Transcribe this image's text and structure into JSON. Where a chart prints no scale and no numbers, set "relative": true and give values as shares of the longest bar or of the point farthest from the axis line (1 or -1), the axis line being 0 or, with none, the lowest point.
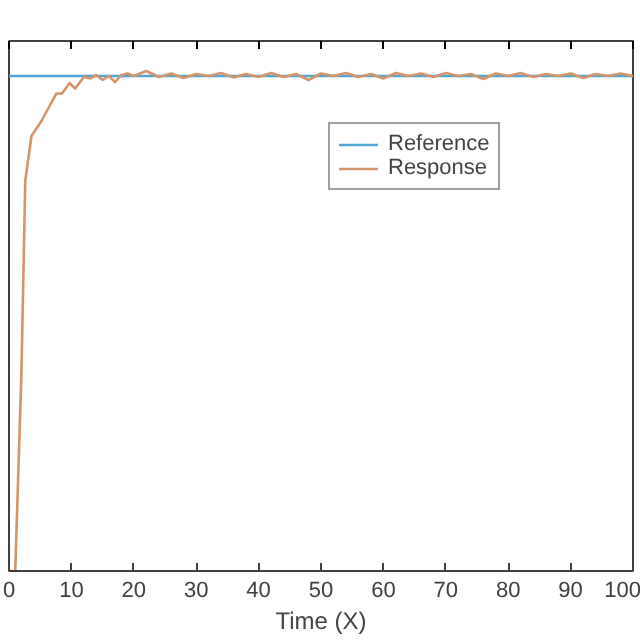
{
  "chart_data": {
    "type": "line",
    "xlabel": "Time (X)",
    "relative": true,
    "xlim": [
      0,
      100
    ],
    "xticks": [
      0,
      10,
      20,
      30,
      40,
      50,
      60,
      70,
      80,
      90,
      100
    ],
    "tick_labels": "x",
    "legend": "top right",
    "grid": false,
    "series": [
      {
        "name": "Reference",
        "color": "#4da6d6",
        "x": [
          0,
          100
        ],
        "values": [
          0.99,
          0.99
        ]
      },
      {
        "name": "Response",
        "color": "#d4956a",
        "x": [
          0,
          1,
          2,
          2.6,
          3.6,
          5.2,
          6.5,
          7.6,
          8.5,
          9.7,
          10.6,
          12,
          13,
          14,
          15,
          16,
          17,
          18,
          19,
          20,
          22,
          24,
          26,
          28,
          30,
          32,
          34,
          36,
          38,
          40,
          42,
          44,
          46,
          48,
          50,
          52,
          54,
          56,
          58,
          60,
          62,
          64,
          66,
          68,
          70,
          72,
          74,
          76,
          78,
          80,
          82,
          84,
          86,
          88,
          90,
          92,
          94,
          96,
          98,
          100
        ],
        "values": [
          0,
          0,
          0.4,
          0.78,
          0.87,
          0.9,
          0.93,
          0.955,
          0.955,
          0.976,
          0.965,
          0.988,
          0.985,
          0.992,
          0.982,
          0.99,
          0.978,
          0.992,
          0.995,
          0.99,
          1,
          0.988,
          0.995,
          0.986,
          0.994,
          0.99,
          0.996,
          0.987,
          0.994,
          0.988,
          0.996,
          0.988,
          0.994,
          0.982,
          0.995,
          0.99,
          0.996,
          0.988,
          0.994,
          0.985,
          0.996,
          0.99,
          0.995,
          0.988,
          0.996,
          0.99,
          0.994,
          0.984,
          0.995,
          0.99,
          0.996,
          0.988,
          0.994,
          0.99,
          0.995,
          0.986,
          0.994,
          0.99,
          0.995,
          0.99
        ]
      }
    ]
  }
}
